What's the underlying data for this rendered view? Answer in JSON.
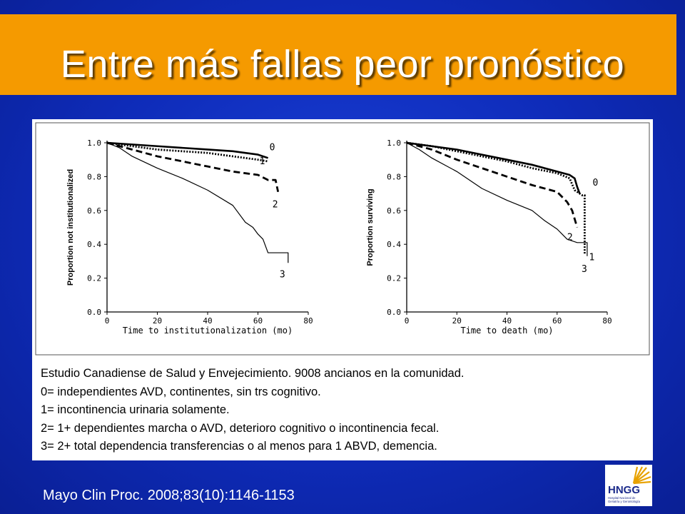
{
  "slide": {
    "title": "Entre más fallas peor pronóstico",
    "citation": "Mayo Clin Proc. 2008;83(10):1146-1153",
    "colors": {
      "title_bar": "#f59a00",
      "background": "#1230c8",
      "panel": "#ffffff"
    }
  },
  "caption": {
    "lines": [
      "Estudio Canadiense de Salud y Envejecimiento. 9008 ancianos en la comunidad.",
      "0= independientes AVD, continentes, sin trs cognitivo.",
      "1= incontinencia urinaria solamente.",
      "2= 1+ dependientes marcha o AVD, deterioro cognitivo o incontinencia fecal.",
      "3= 2+ total dependencia transferencias o al menos para 1 ABVD, demencia."
    ]
  },
  "logo": {
    "text": "HNGG",
    "subtext": "Hospital Nacional de Geriatría y Gerontología",
    "icon": "sun-rays-icon"
  },
  "chart_data": [
    {
      "type": "line",
      "xlabel": "Time to institutionalization (mo)",
      "ylabel": "Proportion not institutionalized",
      "xlim": [
        0,
        80
      ],
      "ylim": [
        0,
        1.0
      ],
      "xticks": [
        "0",
        "20",
        "40",
        "60",
        "80"
      ],
      "yticks": [
        "0.0",
        "0.2",
        "0.4",
        "0.6",
        "0.8",
        "1.0"
      ],
      "grid": false,
      "series": [
        {
          "name": "0",
          "style": "solid",
          "x": [
            0,
            10,
            20,
            30,
            40,
            50,
            60,
            64
          ],
          "y": [
            1.0,
            0.99,
            0.98,
            0.97,
            0.96,
            0.95,
            0.93,
            0.91
          ]
        },
        {
          "name": "1",
          "style": "dotted",
          "x": [
            0,
            10,
            20,
            30,
            40,
            50,
            60,
            64
          ],
          "y": [
            1.0,
            0.98,
            0.96,
            0.95,
            0.94,
            0.92,
            0.9,
            0.89
          ]
        },
        {
          "name": "2",
          "style": "dashed",
          "x": [
            0,
            10,
            20,
            30,
            40,
            50,
            60,
            64,
            67,
            68
          ],
          "y": [
            1.0,
            0.96,
            0.92,
            0.89,
            0.86,
            0.83,
            0.81,
            0.78,
            0.78,
            0.71
          ]
        },
        {
          "name": "3",
          "style": "thin",
          "x": [
            0,
            5,
            10,
            20,
            30,
            40,
            50,
            55,
            58,
            60,
            62,
            64,
            66,
            72,
            72
          ],
          "y": [
            1.0,
            0.97,
            0.92,
            0.85,
            0.79,
            0.72,
            0.63,
            0.53,
            0.5,
            0.46,
            0.43,
            0.35,
            0.35,
            0.35,
            0.29
          ]
        }
      ]
    },
    {
      "type": "line",
      "xlabel": "Time to death (mo)",
      "ylabel": "Proportion surviving",
      "xlim": [
        0,
        80
      ],
      "ylim": [
        0,
        1.0
      ],
      "xticks": [
        "0",
        "20",
        "40",
        "60",
        "80"
      ],
      "yticks": [
        "0.0",
        "0.2",
        "0.4",
        "0.6",
        "0.8",
        "1.0"
      ],
      "grid": false,
      "series": [
        {
          "name": "0",
          "style": "solid",
          "x": [
            0,
            10,
            20,
            30,
            40,
            50,
            60,
            65,
            67,
            68,
            69
          ],
          "y": [
            1.0,
            0.98,
            0.96,
            0.93,
            0.9,
            0.87,
            0.83,
            0.81,
            0.79,
            0.74,
            0.7
          ]
        },
        {
          "name": "1",
          "style": "dotted",
          "x": [
            0,
            10,
            20,
            30,
            40,
            50,
            60,
            65,
            67,
            70,
            71,
            71
          ],
          "y": [
            1.0,
            0.98,
            0.95,
            0.92,
            0.89,
            0.85,
            0.82,
            0.79,
            0.72,
            0.69,
            0.69,
            0.34
          ]
        },
        {
          "name": "2",
          "style": "dashed",
          "x": [
            0,
            10,
            20,
            30,
            40,
            50,
            60,
            64,
            66,
            67,
            68
          ],
          "y": [
            1.0,
            0.96,
            0.9,
            0.85,
            0.8,
            0.75,
            0.71,
            0.65,
            0.6,
            0.55,
            0.5
          ]
        },
        {
          "name": "3",
          "style": "thin",
          "x": [
            0,
            5,
            10,
            20,
            30,
            40,
            50,
            55,
            60,
            62,
            64,
            66,
            68,
            71,
            72,
            72
          ],
          "y": [
            1.0,
            0.96,
            0.91,
            0.83,
            0.73,
            0.66,
            0.6,
            0.54,
            0.49,
            0.46,
            0.43,
            0.42,
            0.41,
            0.41,
            0.41,
            0.33
          ]
        }
      ]
    }
  ]
}
